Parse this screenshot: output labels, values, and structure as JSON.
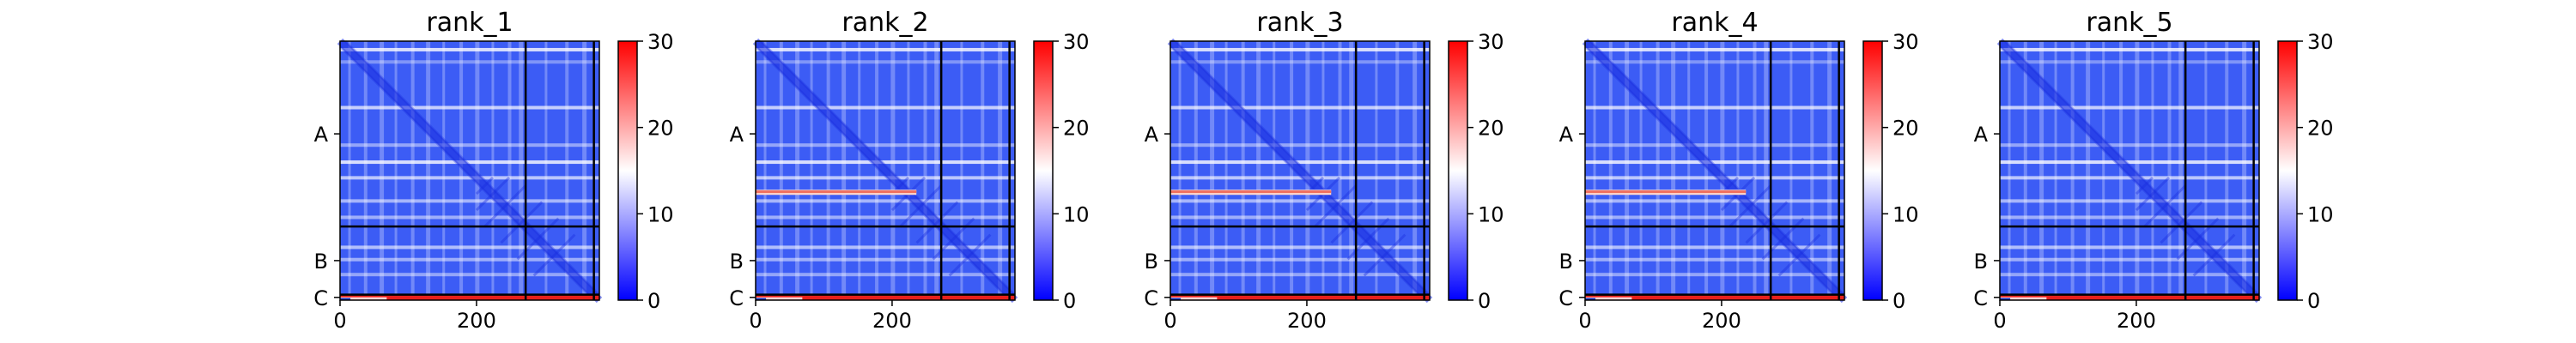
{
  "chart_data": {
    "type": "heatmap",
    "colormap": [
      "#0000ff",
      "#ffffff",
      "#ff0000"
    ],
    "color_range": [
      0,
      30
    ],
    "colorbar_ticks": [
      "0",
      "10",
      "20",
      "30"
    ],
    "x_ticks": [
      0,
      200
    ],
    "x_range": [
      0,
      380
    ],
    "y_labels": [
      "A",
      "B",
      "C"
    ],
    "chain_boundaries": [
      272,
      372
    ],
    "panels": [
      {
        "title": "rank_1",
        "high_band": false
      },
      {
        "title": "rank_2",
        "high_band": true
      },
      {
        "title": "rank_3",
        "high_band": true
      },
      {
        "title": "rank_4",
        "high_band": true
      },
      {
        "title": "rank_5",
        "high_band": false
      }
    ]
  }
}
